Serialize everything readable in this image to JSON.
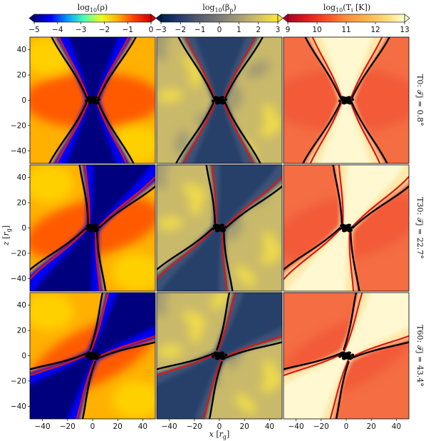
{
  "chart_data": {
    "type": "heatmap",
    "xlabel": "x [r_g]",
    "ylabel": "z [r_g]",
    "xlim": [
      -50,
      50
    ],
    "ylim": [
      -50,
      50
    ],
    "x_ticks": [
      "−40",
      "−20",
      "0",
      "20",
      "40"
    ],
    "y_ticks": [
      "40",
      "20",
      "0",
      "−20",
      "−40"
    ],
    "x_tick_values": [
      -40,
      -20,
      0,
      20,
      40
    ],
    "y_tick_values": [
      40,
      20,
      0,
      -20,
      -40
    ],
    "columns": [
      {
        "name": "log10(ρ)",
        "label_main": "log",
        "label_sub": "10",
        "label_arg": "(ρ)",
        "colormap": "jet",
        "stops": [
          "#00007f",
          "#0000ff",
          "#00a0ff",
          "#4cffb0",
          "#e8ff20",
          "#ffb000",
          "#ff3a00",
          "#d00000"
        ],
        "range": [
          -5,
          0
        ],
        "ticks": [
          "−5",
          "−4",
          "−3",
          "−2",
          "−1",
          "0"
        ],
        "tick_values": [
          -5,
          -4,
          -3,
          -2,
          -1,
          0
        ],
        "extend": "both"
      },
      {
        "name": "log10(βp)",
        "label_main": "log",
        "label_sub": "10",
        "label_arg": "(β",
        "label_sub2": "p",
        "label_end": ")",
        "colormap": "cividis",
        "stops": [
          "#00204c",
          "#273b6e",
          "#575d6d",
          "#7c7b78",
          "#a69d75",
          "#d3c164",
          "#fde737"
        ],
        "range": [
          -3,
          3
        ],
        "ticks": [
          "−3",
          "−2",
          "−1",
          "0",
          "1",
          "2",
          "3"
        ],
        "tick_values": [
          -3,
          -2,
          -1,
          0,
          1,
          2,
          3
        ],
        "extend": "both"
      },
      {
        "name": "log10(Ti [K])",
        "label_main": "log",
        "label_sub": "10",
        "label_arg": "(T",
        "label_sub2": "i",
        "label_end": " [K])",
        "colormap": "YlOrRd_r",
        "stops": [
          "#b10026",
          "#e31a1c",
          "#fc4e2a",
          "#fd8d3c",
          "#feb24c",
          "#fed976",
          "#ffffcc"
        ],
        "range": [
          9,
          13
        ],
        "ticks": [
          "9",
          "10",
          "11",
          "12",
          "13"
        ],
        "tick_values": [
          9,
          10,
          11,
          12,
          13
        ],
        "extend": "max"
      }
    ],
    "rows": [
      {
        "label": "T0: 𝒯j = 0.8°",
        "tilt_deg": 0.8
      },
      {
        "label": "T30: 𝒯j = 22.7°",
        "tilt_deg": 22.7
      },
      {
        "label": "T60: 𝒯j = 43.4°",
        "tilt_deg": 43.4
      }
    ]
  }
}
